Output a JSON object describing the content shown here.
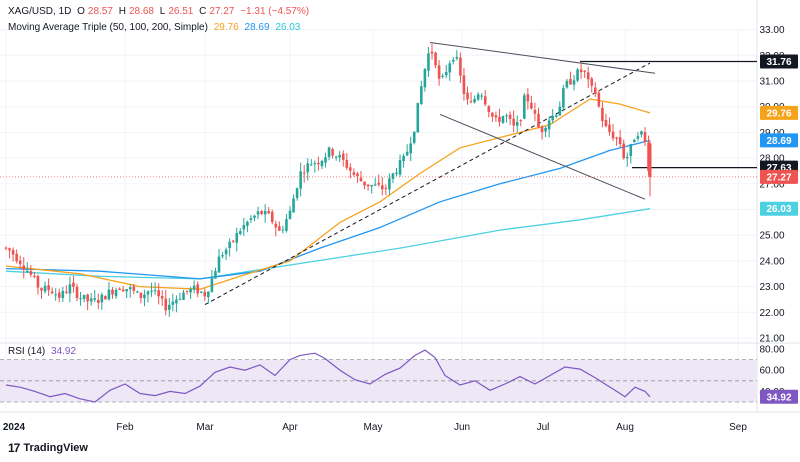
{
  "header": {
    "symbol": "XAG/USD, 1D",
    "o_label": "O",
    "o": "28.57",
    "h_label": "H",
    "h": "28.68",
    "l_label": "L",
    "l": "26.51",
    "c_label": "C",
    "c": "27.27",
    "change": "−1.31 (−4.57%)",
    "ma_label": "Moving Average Triple (50, 100, 200, Simple)",
    "ma50": "29.76",
    "ma100": "28.69",
    "ma200": "26.03",
    "rsi_label": "RSI (14)",
    "rsi_value": "34.92"
  },
  "colors": {
    "up": "#26a69a",
    "down": "#ef5350",
    "ma50": "#f7a21b",
    "ma100": "#2196f3",
    "ma200": "#4dd0e1",
    "rsi": "#7e57c2",
    "rsi_band": "#ede7f6"
  },
  "axis": {
    "price_ticks": [
      "33.00",
      "32.00",
      "31.00",
      "30.00",
      "29.00",
      "28.00",
      "27.00",
      "26.00",
      "25.00",
      "24.00",
      "23.00",
      "22.00",
      "21.00"
    ],
    "rsi_ticks": [
      "80.00",
      "60.00",
      "40.00"
    ],
    "months": [
      "2024",
      "Feb",
      "Mar",
      "Apr",
      "May",
      "Jun",
      "Jul",
      "Aug",
      "Sep"
    ]
  },
  "price_labels": [
    {
      "text": "31.76",
      "value": 31.76,
      "bg": "#131722"
    },
    {
      "text": "29.76",
      "value": 29.76,
      "bg": "#f7a21b"
    },
    {
      "text": "28.69",
      "value": 28.69,
      "bg": "#2196f3"
    },
    {
      "text": "27.63",
      "value": 27.63,
      "bg": "#131722"
    },
    {
      "text": "27.27",
      "value": 27.27,
      "bg": "#ef5350"
    },
    {
      "text": "26.03",
      "value": 26.03,
      "bg": "#4dd0e1"
    }
  ],
  "rsi_label_box": {
    "text": "34.92",
    "value": 34.92,
    "bg": "#7e57c2"
  },
  "brand": {
    "logo": "TradingView"
  },
  "chart_data": {
    "type": "candlestick",
    "title": "XAG/USD, 1D",
    "ylim": [
      21,
      33.3
    ],
    "rsi_ylim": [
      25,
      85
    ],
    "key_points": [
      {
        "month": "Jan",
        "approx_price": 23.0
      },
      {
        "month": "Mar",
        "approx_price": 22.5
      },
      {
        "month": "Apr",
        "approx_price": 27.0
      },
      {
        "month": "May",
        "approx_price": 32.5
      },
      {
        "month": "Jun",
        "approx_price": 29.0
      },
      {
        "month": "Jul",
        "approx_price": 31.5
      },
      {
        "month": "Aug",
        "approx_price": 27.27
      }
    ],
    "levels": [
      31.76,
      27.63
    ]
  }
}
